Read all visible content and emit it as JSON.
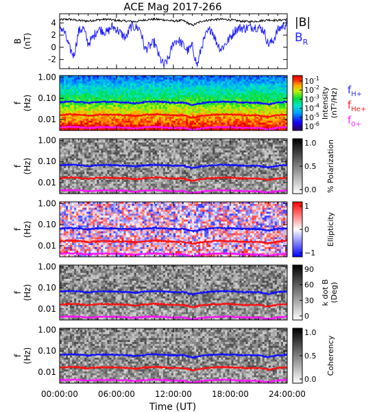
{
  "title": "ACE Mag 2017-266",
  "chart_data": {
    "type": "line",
    "time_axis": {
      "label": "Time (UT)",
      "range_hours": [
        0,
        24
      ],
      "ticks": [
        {
          "t": 0,
          "label": "00:00:00"
        },
        {
          "t": 6,
          "label": "06:00:00"
        },
        {
          "t": 12,
          "label": "12:00:00"
        },
        {
          "t": 18,
          "label": "18:00:00"
        },
        {
          "t": 24,
          "label": "24:00:00"
        }
      ]
    },
    "panels": [
      {
        "id": "b-field",
        "kind": "line",
        "ylabel": [
          "B",
          "(nT)"
        ],
        "ylim": [
          -3.5,
          5.5
        ],
        "yticks": [
          {
            "v": 4,
            "label": "4"
          },
          {
            "v": 2,
            "label": "2"
          },
          {
            "v": 0,
            "label": "0"
          },
          {
            "v": -2,
            "label": "-2"
          }
        ],
        "series": [
          {
            "name": "|B|",
            "color": "#000000",
            "t": [
              0,
              1,
              2,
              3,
              4,
              5,
              6,
              7,
              8,
              9,
              10,
              11,
              12,
              13,
              14,
              15,
              16,
              17,
              18,
              19,
              20,
              21,
              22,
              23,
              24
            ],
            "values": [
              4.5,
              4.6,
              4.4,
              4.3,
              4.5,
              4.6,
              4.4,
              4.3,
              4.2,
              4.5,
              4.6,
              4.5,
              4.3,
              4.4,
              3.6,
              4.3,
              4.5,
              4.6,
              4.5,
              4.3,
              4.2,
              4.3,
              4.5,
              4.4,
              4.6
            ]
          },
          {
            "name": "B",
            "sub": "R",
            "color": "#1f1fff",
            "t": [
              0,
              0.5,
              1,
              1.5,
              2,
              2.5,
              3,
              3.5,
              4,
              4.5,
              5,
              5.5,
              6,
              6.5,
              7,
              7.5,
              8,
              8.5,
              9,
              9.5,
              10,
              10.5,
              11,
              11.5,
              12,
              12.5,
              13,
              13.5,
              14,
              14.5,
              15,
              15.5,
              16,
              16.5,
              17,
              17.5,
              18,
              18.5,
              19,
              19.5,
              20,
              20.5,
              21,
              21.5,
              22,
              22.5,
              23,
              23.5,
              24
            ],
            "values": [
              3.5,
              2.5,
              0.0,
              -1.4,
              2.6,
              3.2,
              0.6,
              1.5,
              3.0,
              2.8,
              2.4,
              3.4,
              3.0,
              2.2,
              1.5,
              3.4,
              3.3,
              3.0,
              -0.4,
              0.2,
              0.8,
              -1.6,
              -3.0,
              -1.8,
              0.8,
              1.2,
              0.4,
              -0.6,
              0.2,
              -3.1,
              0.3,
              2.2,
              3.1,
              1.0,
              -0.3,
              0.6,
              1.6,
              2.8,
              3.2,
              3.1,
              3.3,
              3.4,
              3.2,
              2.9,
              0.5,
              1.0,
              2.8,
              3.5,
              3.8
            ]
          }
        ],
        "legend": [
          {
            "text": "|B|",
            "color": "#000000"
          },
          {
            "text": "B",
            "sub": "R",
            "color": "#1f1fff"
          }
        ]
      },
      {
        "id": "intensity",
        "kind": "spectrogram",
        "colormap": "rainbow",
        "ylabel": [
          "f",
          "(Hz)"
        ],
        "yticks": [
          "1.00",
          "0.10",
          "0.01"
        ],
        "cbar_label": [
          "Intensity",
          "(nT²/Hz)"
        ],
        "cbar_ticks": [
          {
            "base": "10",
            "exp": "-1"
          },
          {
            "base": "10",
            "exp": "-2"
          },
          {
            "base": "10",
            "exp": "-3"
          },
          {
            "base": "10",
            "exp": "-4"
          },
          {
            "base": "10",
            "exp": "-5"
          },
          {
            "base": "10",
            "exp": "-6"
          }
        ],
        "legend": [
          {
            "text": "f",
            "sub": "H+",
            "color": "#2b2bff"
          },
          {
            "text": "f",
            "sub": "He+",
            "color": "#ff1f1f"
          },
          {
            "text": "f",
            "sub": "0+",
            "color": "#ff20ff"
          }
        ]
      },
      {
        "id": "polarization",
        "kind": "spectrogram",
        "colormap": "gray",
        "ylabel": [
          "f",
          "(Hz)"
        ],
        "yticks": [
          "1.00",
          "0.10",
          "0.01"
        ],
        "cbar_label": [
          "% Polarization"
        ],
        "cbar_ticks": [
          "1.0",
          "0.5",
          "0.0"
        ]
      },
      {
        "id": "ellipticity",
        "kind": "spectrogram",
        "colormap": "bwr",
        "ylabel": [
          "f",
          "(Hz)"
        ],
        "yticks": [
          "1.00",
          "0.10",
          "0.01"
        ],
        "cbar_label": [
          "Ellipticity"
        ],
        "cbar_ticks": [
          "1",
          "0",
          "−1"
        ]
      },
      {
        "id": "k-dot-b",
        "kind": "spectrogram",
        "colormap": "gray",
        "ylabel": [
          "f",
          "(Hz)"
        ],
        "yticks": [
          "1.00",
          "0.10",
          "0.01"
        ],
        "cbar_label": [
          "k dot B",
          "(Deg)"
        ],
        "cbar_ticks": [
          "90",
          "60",
          "30",
          "0"
        ]
      },
      {
        "id": "coherency",
        "kind": "spectrogram",
        "colormap": "gray",
        "ylabel": [
          "f",
          "(Hz)"
        ],
        "yticks": [
          "1.00",
          "0.10",
          "0.01"
        ],
        "cbar_label": [
          "Coherency"
        ],
        "cbar_ticks": [
          "1.0",
          "0.5",
          "0.0"
        ]
      }
    ],
    "gyrofrequency_lines": [
      {
        "name": "f_H+",
        "color": "#1010ff",
        "t": [
          0,
          1,
          2,
          3,
          4,
          5,
          6,
          7,
          8,
          9,
          10,
          11,
          12,
          13,
          14,
          15,
          16,
          17,
          18,
          19,
          20,
          21,
          22,
          23,
          24
        ],
        "hz": [
          0.065,
          0.07,
          0.068,
          0.06,
          0.067,
          0.068,
          0.066,
          0.064,
          0.058,
          0.066,
          0.07,
          0.067,
          0.062,
          0.064,
          0.048,
          0.06,
          0.066,
          0.069,
          0.068,
          0.064,
          0.062,
          0.062,
          0.052,
          0.063,
          0.068
        ]
      },
      {
        "name": "f_He+",
        "color": "#ff1010",
        "t": [
          0,
          1,
          2,
          3,
          4,
          5,
          6,
          7,
          8,
          9,
          10,
          11,
          12,
          13,
          14,
          15,
          16,
          17,
          18,
          19,
          20,
          21,
          22,
          23,
          24
        ],
        "hz": [
          0.016,
          0.0175,
          0.017,
          0.015,
          0.0168,
          0.017,
          0.0165,
          0.016,
          0.0145,
          0.0165,
          0.0175,
          0.0168,
          0.0155,
          0.016,
          0.012,
          0.015,
          0.0165,
          0.0172,
          0.017,
          0.016,
          0.0155,
          0.0155,
          0.013,
          0.0158,
          0.017
        ]
      },
      {
        "name": "f_0+",
        "color": "#ff10ff",
        "t": [
          0,
          1,
          2,
          3,
          4,
          5,
          6,
          7,
          8,
          9,
          10,
          11,
          12,
          13,
          14,
          15,
          16,
          17,
          18,
          19,
          20,
          21,
          22,
          23,
          24
        ],
        "hz": [
          0.0042,
          0.0044,
          0.0043,
          0.0039,
          0.0042,
          0.0043,
          0.0042,
          0.0041,
          0.0037,
          0.0042,
          0.0044,
          0.0042,
          0.0039,
          0.004,
          0.0031,
          0.0038,
          0.0042,
          0.0043,
          0.0043,
          0.004,
          0.0039,
          0.0039,
          0.0033,
          0.004,
          0.0043
        ]
      }
    ],
    "frequency_range_hz": [
      0.003,
      1.2
    ]
  }
}
